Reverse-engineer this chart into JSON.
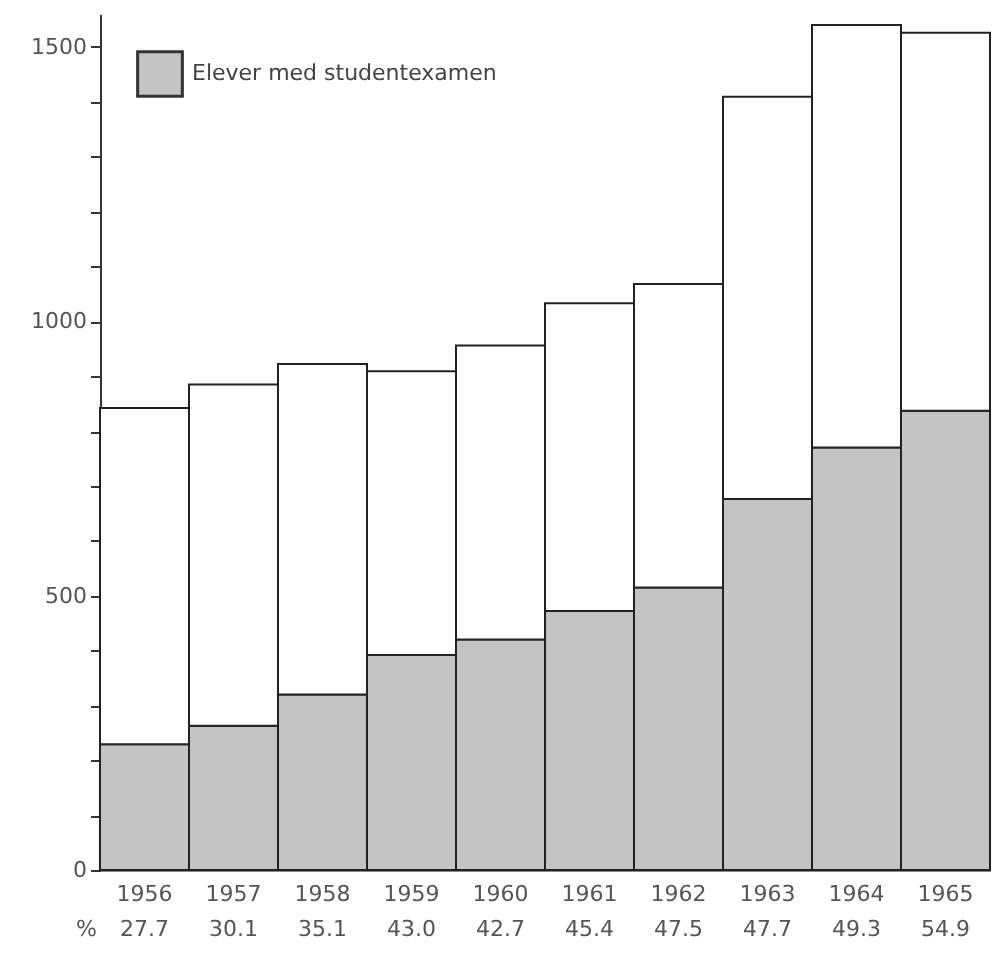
{
  "chart_data": {
    "type": "bar",
    "stacked": true,
    "categories": [
      "1956",
      "1957",
      "1958",
      "1959",
      "1960",
      "1961",
      "1962",
      "1963",
      "1964",
      "1965"
    ],
    "series": [
      {
        "name": "Elever med studentexamen",
        "color": "#c4c4c4",
        "values": [
          229,
          263,
          320,
          392,
          420,
          472,
          515,
          676,
          770,
          837
        ]
      },
      {
        "color": "#ffffff",
        "values": [
          613,
          622,
          602,
          517,
          536,
          561,
          553,
          733,
          770,
          689
        ]
      }
    ],
    "ylim": [
      0,
      1560
    ],
    "yticks": [
      0,
      {
        "value": 100,
        "label": null
      },
      {
        "value": 200,
        "label": null
      },
      {
        "value": 300,
        "label": null
      },
      {
        "value": 400,
        "label": null
      },
      500,
      {
        "value": 600,
        "label": null
      },
      {
        "value": 700,
        "label": null
      },
      {
        "value": 800,
        "label": null
      },
      {
        "value": 900,
        "label": null
      },
      1000,
      {
        "value": 1100,
        "label": null
      },
      {
        "value": 1200,
        "label": null
      },
      {
        "value": 1300,
        "label": null
      },
      {
        "value": 1400,
        "label": null
      },
      1500
    ],
    "grid": false,
    "legend": "top left",
    "annotations": [
      "%",
      "27.7",
      "30.1",
      "35.1",
      "43.0",
      "42.7",
      "45.4",
      "47.5",
      "47.7",
      "49.3",
      "54.9"
    ]
  }
}
